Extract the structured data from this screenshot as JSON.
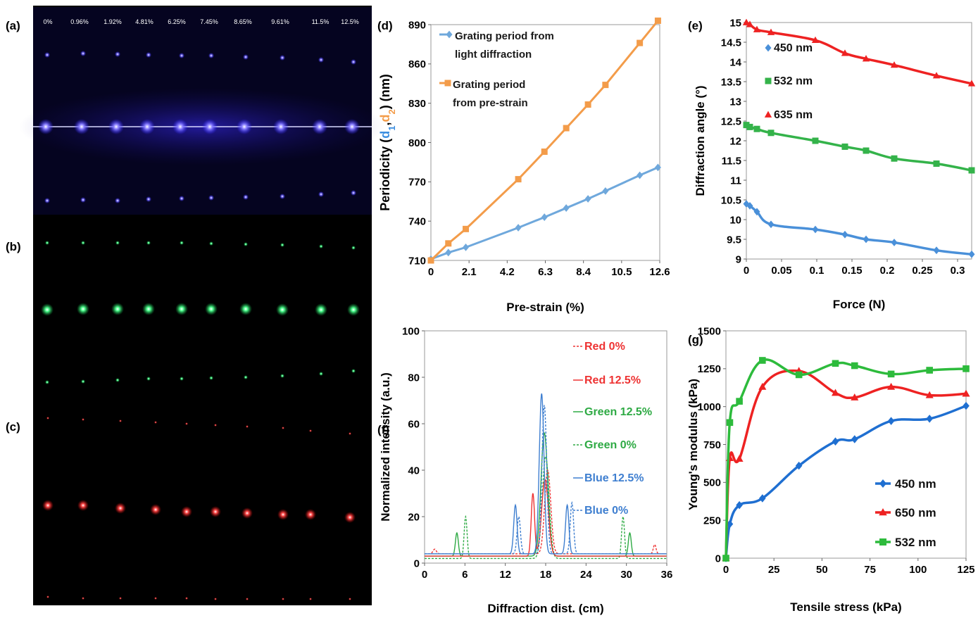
{
  "panel_labels": {
    "a": "(a)",
    "b": "(b)",
    "c": "(c)",
    "d": "(d)",
    "e": "(e)",
    "f": "(f)",
    "g": "(g)"
  },
  "photo": {
    "strain_labels": [
      "0%",
      "0.96%",
      "1.92%",
      "4.81%",
      "6.25%",
      "7.45%",
      "8.65%",
      "9.61%",
      "11.5%",
      "12.5%"
    ],
    "colors": {
      "blue": "#5a4dff",
      "green": "#39e07a",
      "red": "#ff3b3b",
      "background": "#000000"
    }
  },
  "chart_data": [
    {
      "panel": "d",
      "type": "line",
      "xlabel": "Pre-strain (%)",
      "ylabel": "Periodicity (d1,d2) (nm)",
      "ylabel_parts": {
        "prefix": "Periodicity (",
        "d1": "d",
        "d1_sub": "1",
        "comma": ",",
        "d2": "d",
        "d2_sub": "2",
        "suffix": ") (nm)"
      },
      "xlim": [
        0,
        12.6
      ],
      "ylim": [
        710,
        890
      ],
      "xticks": [
        "0",
        "2.1",
        "4.2",
        "6.3",
        "8.4",
        "10.5",
        "12.6"
      ],
      "yticks": [
        "710",
        "740",
        "770",
        "800",
        "830",
        "860",
        "890"
      ],
      "legend_position": "top-left",
      "series": [
        {
          "name": "Grating period from light diffraction",
          "legend_lines": [
            "Grating period from",
            "light diffraction"
          ],
          "color": "#6fa8dc",
          "marker": "diamond",
          "x": [
            0,
            0.96,
            1.92,
            4.81,
            6.25,
            7.45,
            8.65,
            9.61,
            11.5,
            12.5
          ],
          "y": [
            711,
            716,
            720,
            735,
            743,
            750,
            757,
            763,
            775,
            781
          ]
        },
        {
          "name": "Grating period from pre-strain",
          "legend_lines": [
            "Grating period",
            "from pre-strain"
          ],
          "color": "#f39c4a",
          "marker": "square",
          "x": [
            0,
            0.96,
            1.92,
            4.81,
            6.25,
            7.45,
            8.65,
            9.61,
            11.5,
            12.5
          ],
          "y": [
            710,
            723,
            734,
            772,
            793,
            811,
            829,
            844,
            876,
            893
          ]
        }
      ]
    },
    {
      "panel": "e",
      "type": "line",
      "xlabel": "Force (N)",
      "ylabel": "Diffraction angle (°)",
      "xlim": [
        0,
        0.32
      ],
      "ylim": [
        9,
        15
      ],
      "xticks": [
        "0",
        "0.05",
        "0.1",
        "0.15",
        "0.2",
        "0.25",
        "0.3"
      ],
      "yticks": [
        "9",
        "9.5",
        "10",
        "10.5",
        "11",
        "11.5",
        "12",
        "12.5",
        "13",
        "13.5",
        "14",
        "14.5",
        "15"
      ],
      "legend_position": "left",
      "series": [
        {
          "name": "450 nm",
          "color": "#4a90d9",
          "marker": "diamond",
          "x": [
            0,
            0.005,
            0.015,
            0.035,
            0.098,
            0.14,
            0.17,
            0.21,
            0.27,
            0.32
          ],
          "y": [
            10.4,
            10.35,
            10.2,
            9.88,
            9.75,
            9.62,
            9.5,
            9.42,
            9.22,
            9.12
          ]
        },
        {
          "name": "532 nm",
          "color": "#34b34a",
          "marker": "square",
          "x": [
            0,
            0.005,
            0.015,
            0.035,
            0.098,
            0.14,
            0.17,
            0.21,
            0.27,
            0.32
          ],
          "y": [
            12.4,
            12.35,
            12.3,
            12.2,
            12.0,
            11.85,
            11.75,
            11.55,
            11.42,
            11.25
          ]
        },
        {
          "name": "635 nm",
          "color": "#ee2222",
          "marker": "triangle",
          "x": [
            0,
            0.005,
            0.015,
            0.035,
            0.098,
            0.14,
            0.17,
            0.21,
            0.27,
            0.32
          ],
          "y": [
            15.0,
            14.95,
            14.82,
            14.75,
            14.55,
            14.22,
            14.08,
            13.92,
            13.65,
            13.45
          ]
        }
      ]
    },
    {
      "panel": "f",
      "type": "line",
      "xlabel": "Diffraction dist. (cm)",
      "ylabel": "Normalized intensity (a.u.)",
      "xlim": [
        0,
        36
      ],
      "ylim": [
        0,
        100
      ],
      "xticks": [
        "0",
        "6",
        "12",
        "18",
        "24",
        "30",
        "36"
      ],
      "yticks": [
        "0",
        "20",
        "40",
        "60",
        "80",
        "100"
      ],
      "legend_position": "right",
      "series": [
        {
          "name": "Red 0%",
          "color": "#ee3333",
          "dashed": true,
          "baseline": 4,
          "peaks": [
            [
              1.5,
              6,
              0.25
            ],
            [
              18.3,
              40,
              0.45
            ],
            [
              34.2,
              8,
              0.2
            ]
          ]
        },
        {
          "name": "Red 12.5%",
          "color": "#ee3333",
          "dashed": false,
          "baseline": 3,
          "peaks": [
            [
              1.4,
              3,
              0.25
            ],
            [
              16.1,
              30,
              0.25
            ],
            [
              17.9,
              36,
              0.5
            ],
            [
              34.5,
              3,
              0.2
            ]
          ]
        },
        {
          "name": "Green 12.5%",
          "color": "#2eaa44",
          "dashed": false,
          "baseline": 3,
          "peaks": [
            [
              4.8,
              13,
              0.22
            ],
            [
              17.8,
              56,
              0.5
            ],
            [
              30.5,
              13,
              0.22
            ]
          ]
        },
        {
          "name": "Green 0%",
          "color": "#2eaa44",
          "dashed": true,
          "baseline": 2,
          "peaks": [
            [
              6.1,
              20,
              0.22
            ],
            [
              18.0,
              46,
              0.5
            ],
            [
              29.5,
              20,
              0.22
            ]
          ]
        },
        {
          "name": "Blue 12.5%",
          "color": "#3f7fd0",
          "dashed": false,
          "baseline": 4,
          "peaks": [
            [
              13.5,
              25,
              0.25
            ],
            [
              17.4,
              73,
              0.35
            ],
            [
              21.2,
              25,
              0.25
            ]
          ]
        },
        {
          "name": "Blue 0%",
          "color": "#3f7fd0",
          "dashed": true,
          "baseline": 4,
          "peaks": [
            [
              14.0,
              20,
              0.25
            ],
            [
              17.8,
              68,
              0.35
            ],
            [
              21.9,
              26,
              0.25
            ]
          ]
        }
      ]
    },
    {
      "panel": "g",
      "type": "line",
      "xlabel": "Tensile stress (kPa)",
      "ylabel": "Young's modulus (kPa)",
      "xlim": [
        0,
        125
      ],
      "ylim": [
        0,
        1500
      ],
      "xticks": [
        "0",
        "25",
        "50",
        "75",
        "100",
        "125"
      ],
      "yticks": [
        "0",
        "250",
        "500",
        "750",
        "1000",
        "1250",
        "1500"
      ],
      "legend_position": "bottom-right",
      "series": [
        {
          "name": "450 nm",
          "color": "#1f6fd1",
          "marker": "diamond",
          "x": [
            0,
            2,
            7,
            19,
            38,
            57,
            67,
            86,
            106,
            125
          ],
          "y": [
            0,
            225,
            350,
            395,
            610,
            770,
            785,
            905,
            920,
            1005
          ]
        },
        {
          "name": "650 nm",
          "color": "#ee2222",
          "marker": "triangle",
          "x": [
            0,
            2,
            7,
            19,
            38,
            57,
            67,
            86,
            106,
            125
          ],
          "y": [
            0,
            660,
            655,
            1130,
            1235,
            1090,
            1060,
            1130,
            1075,
            1085
          ]
        },
        {
          "name": "532 nm",
          "color": "#2dbb3c",
          "marker": "square",
          "x": [
            0,
            2,
            7,
            19,
            38,
            57,
            67,
            86,
            106,
            125
          ],
          "y": [
            0,
            895,
            1035,
            1305,
            1210,
            1285,
            1270,
            1215,
            1240,
            1250
          ]
        }
      ]
    }
  ]
}
